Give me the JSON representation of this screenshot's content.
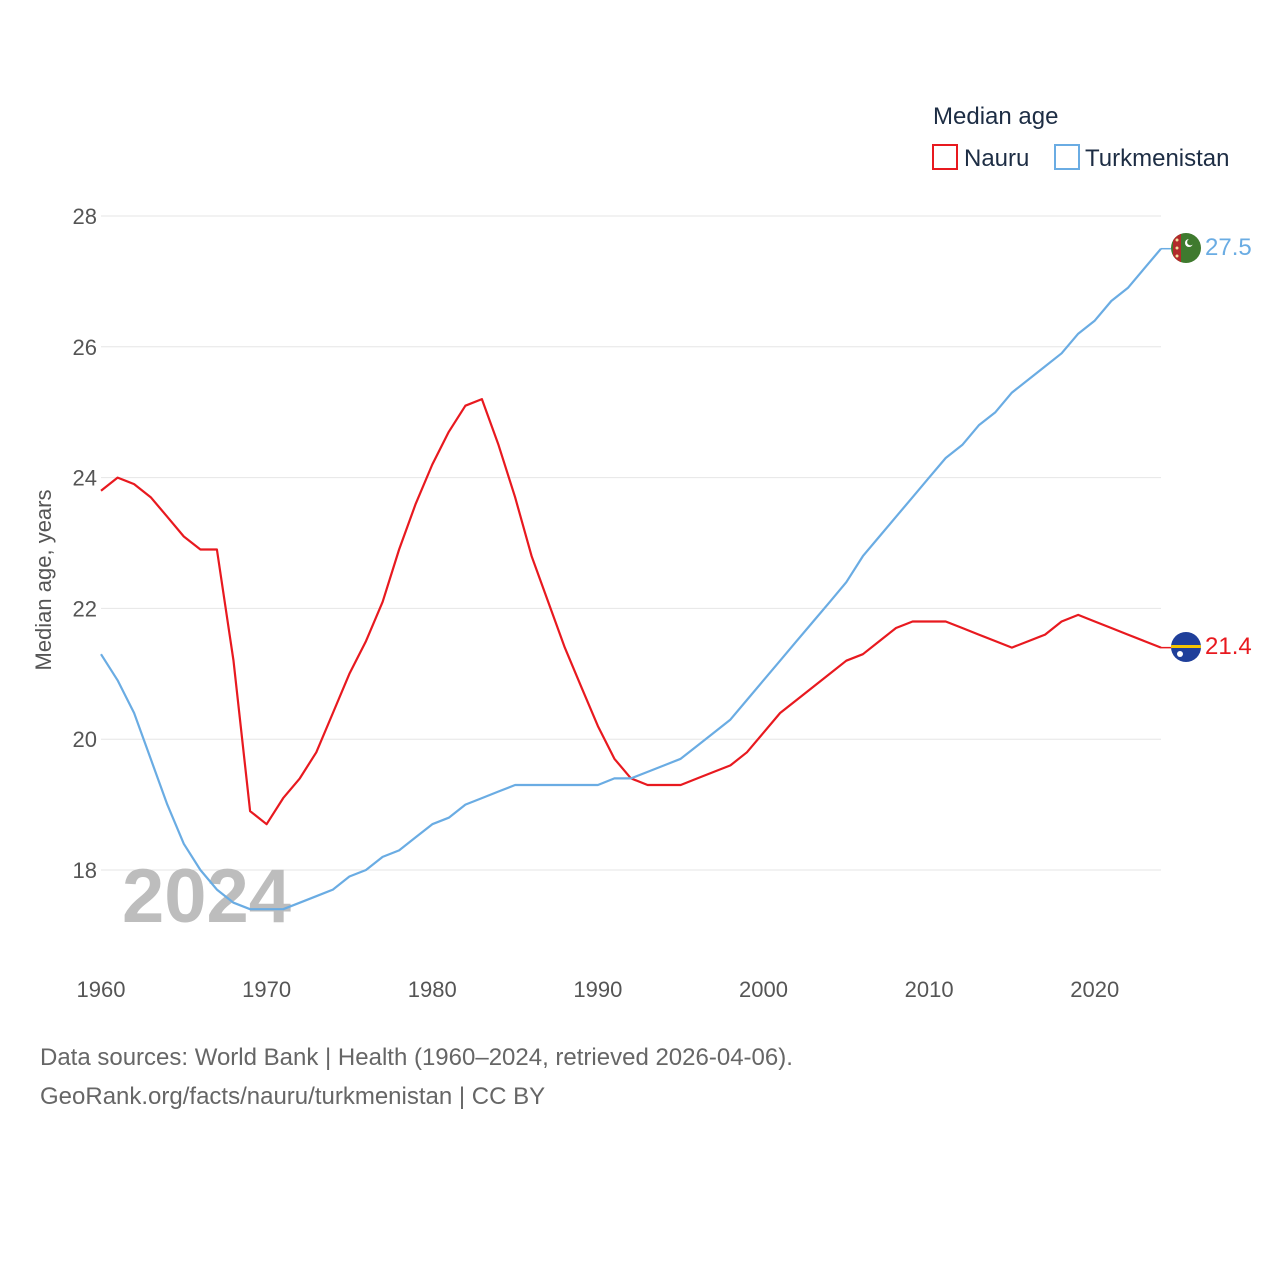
{
  "chart_data": {
    "type": "line",
    "title": "Median age",
    "ylabel": "Median age, years",
    "xlabel": "",
    "year_watermark": "2024",
    "xlim": [
      1960,
      2024
    ],
    "ylim": [
      17,
      28
    ],
    "x_ticks": [
      1960,
      1970,
      1980,
      1990,
      2000,
      2010,
      2020
    ],
    "y_ticks": [
      18,
      20,
      22,
      24,
      26,
      28
    ],
    "grid": true,
    "legend_position": "top-right",
    "x": [
      1960,
      1961,
      1962,
      1963,
      1964,
      1965,
      1966,
      1967,
      1968,
      1969,
      1970,
      1971,
      1972,
      1973,
      1974,
      1975,
      1976,
      1977,
      1978,
      1979,
      1980,
      1981,
      1982,
      1983,
      1984,
      1985,
      1986,
      1987,
      1988,
      1989,
      1990,
      1991,
      1992,
      1993,
      1994,
      1995,
      1996,
      1997,
      1998,
      1999,
      2000,
      2001,
      2002,
      2003,
      2004,
      2005,
      2006,
      2007,
      2008,
      2009,
      2010,
      2011,
      2012,
      2013,
      2014,
      2015,
      2016,
      2017,
      2018,
      2019,
      2020,
      2021,
      2022,
      2023,
      2024
    ],
    "series": [
      {
        "name": "Nauru",
        "color": "#e8191f",
        "end_label": "21.4",
        "values": [
          23.8,
          24.0,
          23.9,
          23.7,
          23.4,
          23.1,
          22.9,
          22.9,
          21.2,
          18.9,
          18.7,
          19.1,
          19.4,
          19.8,
          20.4,
          21.0,
          21.5,
          22.1,
          22.9,
          23.6,
          24.2,
          24.7,
          25.1,
          25.2,
          24.5,
          23.7,
          22.8,
          22.1,
          21.4,
          20.8,
          20.2,
          19.7,
          19.4,
          19.3,
          19.3,
          19.3,
          19.4,
          19.5,
          19.6,
          19.8,
          20.1,
          20.4,
          20.6,
          20.8,
          21.0,
          21.2,
          21.3,
          21.5,
          21.7,
          21.8,
          21.8,
          21.8,
          21.7,
          21.6,
          21.5,
          21.4,
          21.5,
          21.6,
          21.8,
          21.9,
          21.8,
          21.7,
          21.6,
          21.5,
          21.4
        ]
      },
      {
        "name": "Turkmenistan",
        "color": "#6aace3",
        "end_label": "27.5",
        "values": [
          21.3,
          20.9,
          20.4,
          19.7,
          19.0,
          18.4,
          18.0,
          17.7,
          17.5,
          17.4,
          17.4,
          17.4,
          17.5,
          17.6,
          17.7,
          17.9,
          18.0,
          18.2,
          18.3,
          18.5,
          18.7,
          18.8,
          19.0,
          19.1,
          19.2,
          19.3,
          19.3,
          19.3,
          19.3,
          19.3,
          19.3,
          19.4,
          19.4,
          19.5,
          19.6,
          19.7,
          19.9,
          20.1,
          20.3,
          20.6,
          20.9,
          21.2,
          21.5,
          21.8,
          22.1,
          22.4,
          22.8,
          23.1,
          23.4,
          23.7,
          24.0,
          24.3,
          24.5,
          24.8,
          25.0,
          25.3,
          25.5,
          25.7,
          25.9,
          26.2,
          26.4,
          26.7,
          26.9,
          27.2,
          27.5
        ]
      }
    ]
  },
  "footer": {
    "line1": "Data sources: World Bank | Health (1960–2024, retrieved 2026-04-06).",
    "line2": "GeoRank.org/facts/nauru/turkmenistan | CC BY"
  },
  "icons": {
    "nauru_flag": "nauru-flag-icon",
    "turkmenistan_flag": "turkmenistan-flag-icon"
  }
}
